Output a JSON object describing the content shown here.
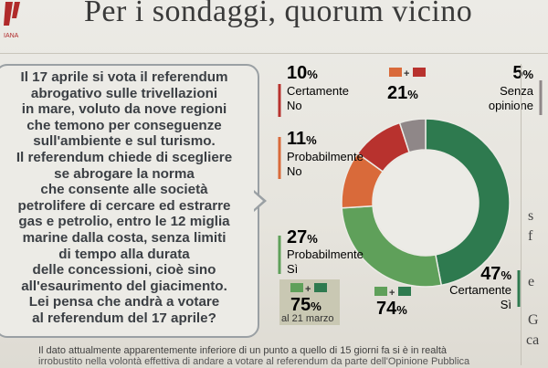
{
  "page": {
    "headline": "Per i sondaggi, quorum vicino",
    "logo_text": "IANA",
    "question_text": "Il 17 aprile si vota il referendum\nabrogativo sulle trivellazioni\nin mare, voluto da nove regioni\nche temono per conseguenze\nsull'ambiente e sul turismo.\nIl referendum chiede di scegliere\nse abrogare la norma\nche consente alle società\npetrolifere di cercare ed estrarre\ngas e petrolio, entro le 12 miglia\nmarine dalla costa, senza limiti\ndi tempo alla durata\ndelle concessioni, cioè sino\nall'esaurimento del giacimento.\nLei pensa che andrà a votare\nal referendum del 17 aprile?",
    "footnote": "Il dato attualmente apparentemente inferiore di un punto a quello di 15 giorni fa si è in realtà",
    "footnote2": "irrobustito nella volontà effettiva di andare a votare al referendum da parte dell'Opinione Pubblica",
    "side_fragments": [
      "s",
      "f",
      "e",
      "G",
      "ca"
    ],
    "colors": {
      "dark_red": "#b8322e",
      "orange": "#d96a3a",
      "grey": "#8f8788",
      "light_green": "#5fa05a",
      "dark_green": "#2e7a4f"
    }
  },
  "chart_data": {
    "type": "pie",
    "donut": true,
    "slices": [
      {
        "label": "Certamente Sì",
        "value": 47,
        "value_text": "47",
        "color": "#2e7a4f"
      },
      {
        "label": "Probabilmente Sì",
        "value": 27,
        "value_text": "27",
        "color": "#5fa05a"
      },
      {
        "label": "Probabilmente No",
        "value": 11,
        "value_text": "11",
        "color": "#d96a3a"
      },
      {
        "label": "Certamente No",
        "value": 10,
        "value_text": "10",
        "color": "#b8322e"
      },
      {
        "label": "Senza opinione",
        "value": 5,
        "value_text": "5",
        "color": "#8f8788"
      }
    ],
    "labels": {
      "cert_no": {
        "pct": "10",
        "text": [
          "Certamente",
          "No"
        ]
      },
      "prob_no": {
        "pct": "11",
        "text": [
          "Probabilmente",
          "No"
        ]
      },
      "senza": {
        "pct": "5",
        "text": [
          "Senza",
          "opinione"
        ]
      },
      "prob_si": {
        "pct": "27",
        "text": [
          "Probabilmente",
          "Sì"
        ]
      },
      "cert_si": {
        "pct": "47",
        "text": [
          "Certamente",
          "Sì"
        ]
      }
    },
    "totals": {
      "no_total": {
        "value": "21",
        "unit": "%"
      },
      "si_total": {
        "value": "74",
        "unit": "%"
      },
      "si_previous": {
        "value": "75",
        "unit": "%",
        "note": "al 21 marzo"
      }
    },
    "percent_sign": "%",
    "plus_sign": "+"
  }
}
